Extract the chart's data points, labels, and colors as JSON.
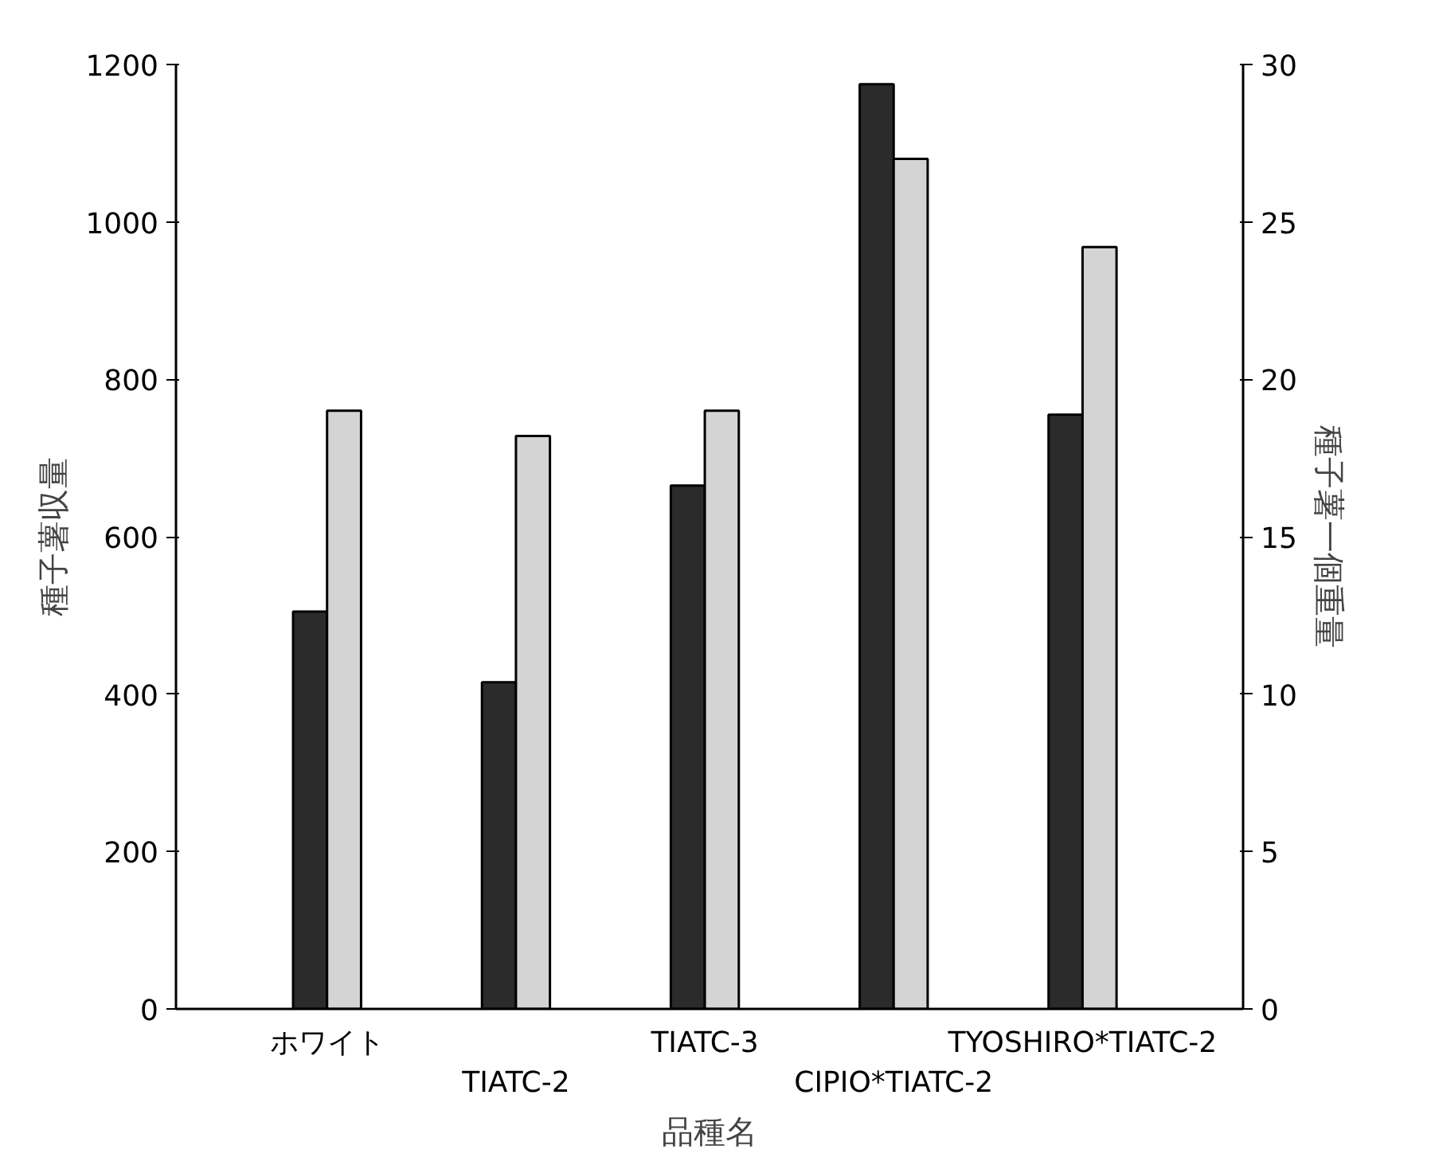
{
  "chart_data": {
    "type": "bar",
    "categories": [
      "ホワイト",
      "TIATC-2",
      "TIATC-3",
      "CIPIO*TIATC-2",
      "TYOSHIRO*TIATC-2"
    ],
    "series": [
      {
        "color": "#2b2b2b",
        "values": [
          505,
          415,
          665,
          1175,
          755
        ]
      },
      {
        "color": "#d4d4d4",
        "values": [
          19,
          18.2,
          19,
          27,
          24.2
        ],
        "axis": "y2"
      }
    ],
    "xlabel": "品種名",
    "ylabel": "種子薯収量",
    "y2label": "種子薯一個重量",
    "ylim": [
      0,
      1200
    ],
    "yticks": [
      0,
      200,
      400,
      600,
      800,
      1000,
      1200
    ],
    "y2lim": [
      0,
      30
    ],
    "y2ticks": [
      0,
      5,
      10,
      15,
      20,
      25,
      30
    ],
    "grid": false
  }
}
